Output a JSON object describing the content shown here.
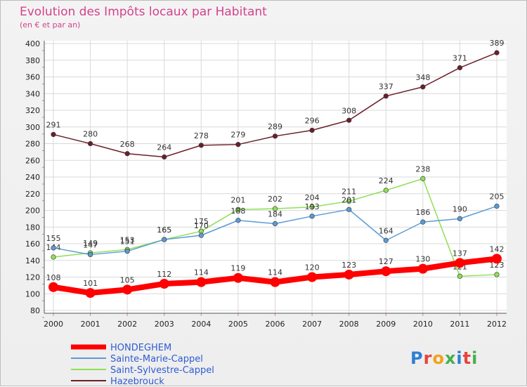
{
  "chart_data": {
    "type": "line",
    "title": "Evolution des Impôts locaux par Habitant",
    "subtitle": "(en € et par an)",
    "x": [
      "2000",
      "2001",
      "2002",
      "2003",
      "2004",
      "2005",
      "2006",
      "2007",
      "2008",
      "2009",
      "2010",
      "2011",
      "2012"
    ],
    "ylim": [
      80,
      400
    ],
    "yticks": [
      80,
      100,
      120,
      140,
      160,
      180,
      200,
      220,
      240,
      260,
      280,
      300,
      320,
      340,
      360,
      380,
      400
    ],
    "grid": true,
    "legend_position": "bottom-left",
    "series": [
      {
        "name": "HONDEGHEM",
        "color": "#ff0000",
        "values": [
          108,
          101,
          105,
          112,
          114,
          119,
          114,
          120,
          123,
          127,
          130,
          137,
          142
        ]
      },
      {
        "name": "Sainte-Marie-Cappel",
        "color": "#5b9bd5",
        "values": [
          155,
          147,
          151,
          165,
          170,
          188,
          184,
          193,
          201,
          164,
          186,
          190,
          205
        ]
      },
      {
        "name": "Saint-Sylvestre-Cappel",
        "color": "#8fdf55",
        "values": [
          144,
          149,
          153,
          165,
          175,
          201,
          202,
          204,
          211,
          224,
          238,
          121,
          123
        ]
      },
      {
        "name": "Hazebrouck",
        "color": "#6b1f2a",
        "values": [
          291,
          280,
          268,
          264,
          278,
          279,
          289,
          296,
          308,
          337,
          348,
          371,
          389
        ]
      }
    ]
  },
  "brand": {
    "name": "Proxiti"
  }
}
